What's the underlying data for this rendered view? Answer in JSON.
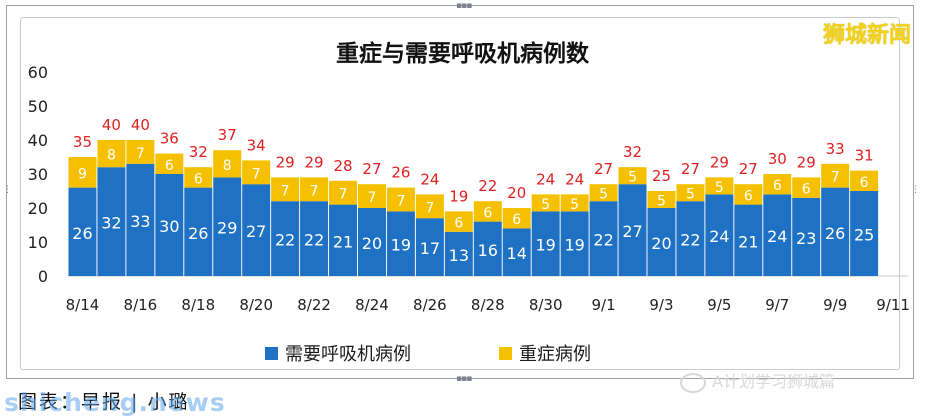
{
  "brand_label": "狮城新闻",
  "caption": "图表：早报 | 小璐",
  "watermark": "shicheng.news",
  "social_label": "A计划学习狮城篇",
  "colors": {
    "series1": "#1f72c3",
    "series2": "#f5c000",
    "totals": "#e02020"
  },
  "chart_data": {
    "type": "bar",
    "stacked": true,
    "title": "重症与需要呼吸机病例数",
    "xlabel": "",
    "ylabel": "",
    "ylim": [
      0,
      60
    ],
    "yticks": [
      0,
      10,
      20,
      30,
      40,
      50,
      60
    ],
    "grid": false,
    "legend_position": "bottom",
    "categories": [
      "8/14",
      "8/15",
      "8/16",
      "8/17",
      "8/18",
      "8/19",
      "8/20",
      "8/21",
      "8/22",
      "8/23",
      "8/24",
      "8/25",
      "8/26",
      "8/27",
      "8/28",
      "8/29",
      "8/30",
      "8/31",
      "9/1",
      "9/2",
      "9/3",
      "9/4",
      "9/5",
      "9/6",
      "9/7",
      "9/8",
      "9/9",
      "9/10"
    ],
    "xticks": [
      "8/14",
      "8/16",
      "8/18",
      "8/20",
      "8/22",
      "8/24",
      "8/26",
      "8/28",
      "8/30",
      "9/1",
      "9/3",
      "9/5",
      "9/7",
      "9/9",
      "9/11"
    ],
    "series": [
      {
        "name": "需要呼吸机病例",
        "values": [
          26,
          32,
          33,
          30,
          26,
          29,
          27,
          22,
          22,
          21,
          20,
          19,
          17,
          13,
          16,
          14,
          19,
          19,
          22,
          27,
          20,
          22,
          24,
          21,
          24,
          23,
          26,
          25
        ]
      },
      {
        "name": "重症病例",
        "values": [
          9,
          8,
          7,
          6,
          6,
          8,
          7,
          7,
          7,
          7,
          7,
          7,
          7,
          6,
          6,
          6,
          5,
          5,
          5,
          5,
          5,
          5,
          5,
          6,
          6,
          6,
          7,
          6
        ]
      }
    ],
    "totals": [
      35,
      40,
      40,
      36,
      32,
      37,
      34,
      29,
      29,
      28,
      27,
      26,
      24,
      19,
      22,
      20,
      24,
      24,
      27,
      32,
      25,
      27,
      29,
      27,
      30,
      29,
      33,
      31
    ]
  }
}
